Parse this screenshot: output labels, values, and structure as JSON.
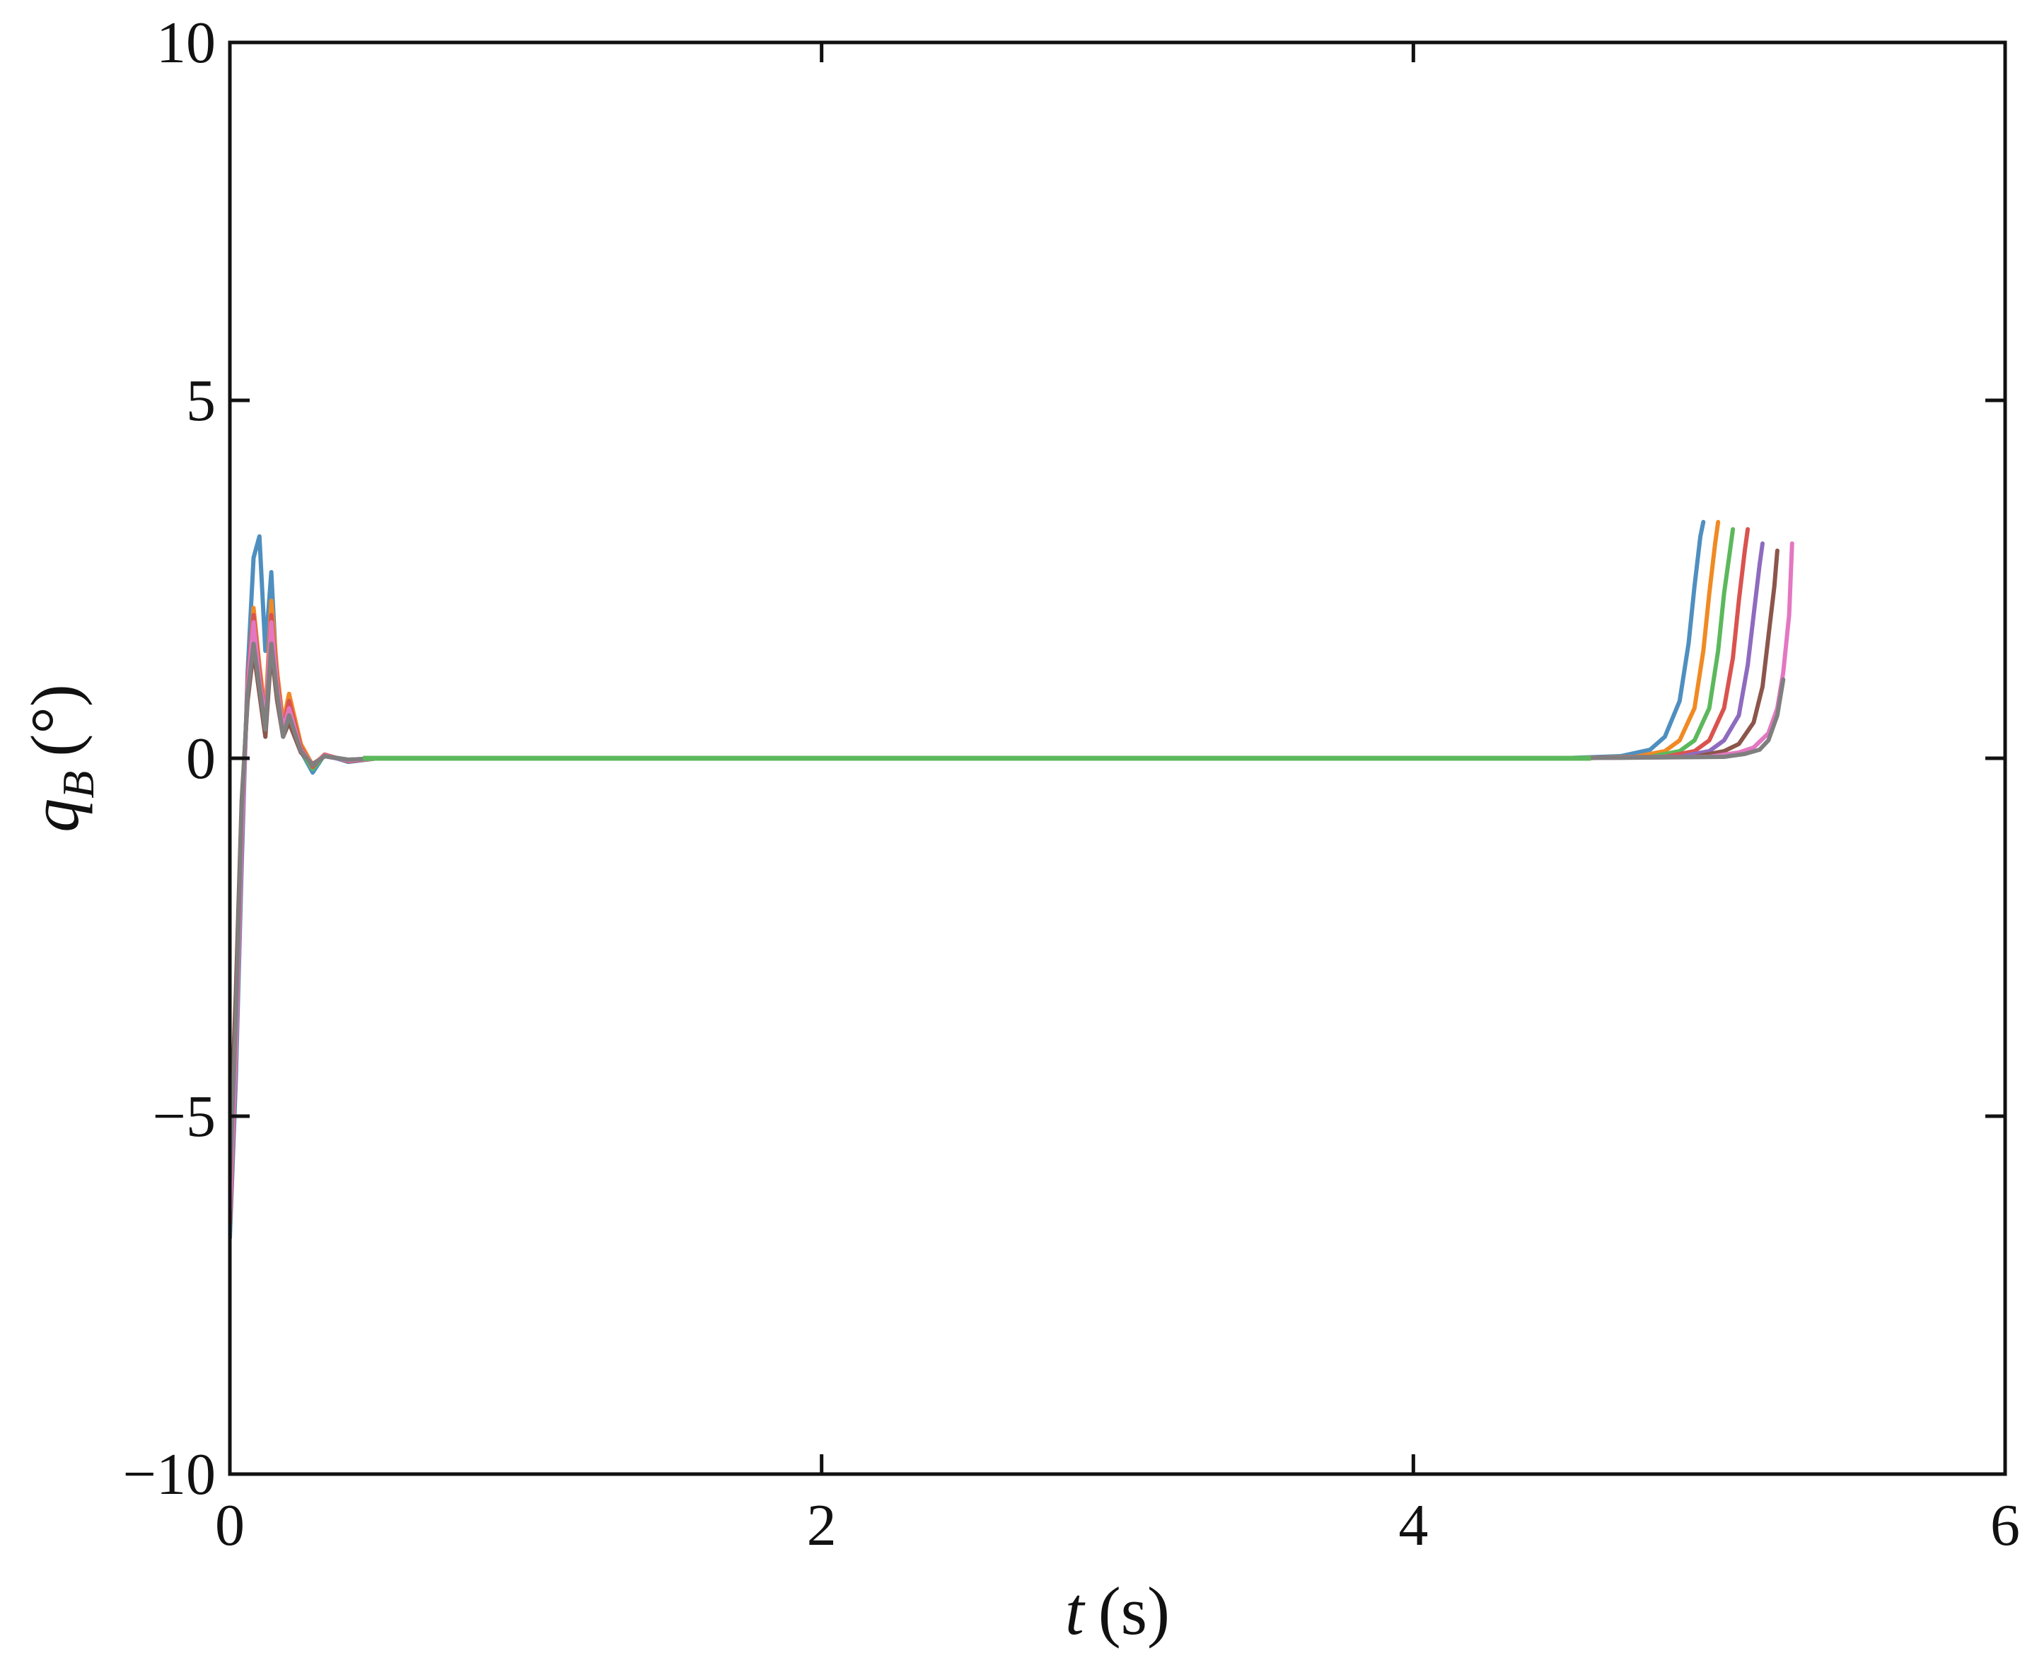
{
  "chart_data": {
    "type": "line",
    "title": "",
    "xlabel_var": "t",
    "xlabel_unit": "(s)",
    "ylabel_var": "q",
    "ylabel_sub": "B",
    "ylabel_unit": "(°)",
    "xlim": [
      0,
      6
    ],
    "ylim": [
      -10,
      10
    ],
    "xticks": [
      0,
      2,
      4,
      6
    ],
    "xtick_labels": [
      "0",
      "2",
      "4",
      "6"
    ],
    "yticks": [
      -10,
      -5,
      0,
      5,
      10
    ],
    "ytick_labels": [
      "−10",
      "−5",
      "0",
      "5",
      "10"
    ],
    "grid": false,
    "legend": "none",
    "series_colors": [
      "#4f8fc0",
      "#f08a24",
      "#5cb85c",
      "#d9534f",
      "#8e6bbf",
      "#8c564b",
      "#e377c2",
      "#7f7f7f",
      "#bcbd22",
      "#17becf",
      "#3a6ea5",
      "#55a868",
      "#333333",
      "#c44e52",
      "#64b5cd"
    ],
    "series": [
      {
        "x": [
          0,
          0.02,
          0.04,
          0.06,
          0.08,
          0.1,
          0.12,
          0.14,
          0.16,
          0.18,
          0.2,
          0.24,
          0.28,
          0.32,
          0.4,
          0.5,
          1,
          2,
          3,
          4,
          4.5,
          4.7,
          4.8,
          4.85,
          4.9,
          4.93,
          4.95,
          4.97,
          4.98
        ],
        "y": [
          -6.7,
          -4.5,
          -1.5,
          1.2,
          2.8,
          3.1,
          1.5,
          2.6,
          1.0,
          0.4,
          0.8,
          0.1,
          -0.2,
          0.05,
          -0.05,
          0,
          0,
          0,
          0,
          0,
          0,
          0.03,
          0.12,
          0.3,
          0.8,
          1.6,
          2.4,
          3.1,
          3.3
        ]
      },
      {
        "x": [
          0,
          0.02,
          0.04,
          0.06,
          0.08,
          0.1,
          0.12,
          0.14,
          0.16,
          0.18,
          0.2,
          0.24,
          0.28,
          0.32,
          0.4,
          0.5,
          1,
          2,
          3,
          4,
          4.5,
          4.75,
          4.85,
          4.9,
          4.95,
          4.98,
          5.0,
          5.02,
          5.03
        ],
        "y": [
          -6.2,
          -4.0,
          -1.0,
          1.0,
          2.1,
          1.3,
          0.6,
          2.2,
          1.2,
          0.5,
          0.9,
          0.2,
          -0.1,
          0.05,
          -0.04,
          0,
          0,
          0,
          0,
          0,
          0,
          0.02,
          0.1,
          0.25,
          0.7,
          1.5,
          2.3,
          3.0,
          3.3
        ]
      },
      {
        "x": [
          0,
          0.02,
          0.04,
          0.06,
          0.08,
          0.1,
          0.12,
          0.14,
          0.16,
          0.18,
          0.2,
          0.24,
          0.28,
          0.32,
          0.4,
          0.5,
          1,
          2,
          3,
          4,
          4.5,
          4.8,
          4.9,
          4.95,
          5.0,
          5.03,
          5.05,
          5.07,
          5.08
        ],
        "y": [
          -5.8,
          -3.6,
          -0.8,
          0.9,
          1.7,
          1.1,
          0.5,
          1.8,
          1.0,
          0.4,
          0.7,
          0.1,
          -0.15,
          0.04,
          -0.03,
          0,
          0,
          0,
          0,
          0,
          0,
          0.02,
          0.1,
          0.25,
          0.7,
          1.5,
          2.3,
          2.9,
          3.2
        ]
      },
      {
        "x": [
          0,
          0.02,
          0.04,
          0.06,
          0.08,
          0.1,
          0.12,
          0.14,
          0.16,
          0.18,
          0.2,
          0.24,
          0.28,
          0.32,
          0.4,
          0.5,
          1,
          2,
          3,
          4,
          4.5,
          4.85,
          4.95,
          5.0,
          5.05,
          5.08,
          5.1,
          5.12,
          5.13
        ],
        "y": [
          -6.5,
          -4.2,
          -1.2,
          1.1,
          2.0,
          1.2,
          0.5,
          2.0,
          1.1,
          0.4,
          0.8,
          0.15,
          -0.12,
          0.05,
          -0.04,
          0,
          0,
          0,
          0,
          0,
          0,
          0.02,
          0.1,
          0.25,
          0.7,
          1.4,
          2.2,
          2.9,
          3.2
        ]
      },
      {
        "x": [
          0,
          0.02,
          0.04,
          0.06,
          0.08,
          0.1,
          0.12,
          0.14,
          0.16,
          0.18,
          0.2,
          0.24,
          0.28,
          0.32,
          0.4,
          0.5,
          1,
          2,
          3,
          4,
          4.5,
          4.9,
          5.0,
          5.05,
          5.1,
          5.13,
          5.15,
          5.17,
          5.18
        ],
        "y": [
          -6.0,
          -3.8,
          -0.9,
          1.0,
          1.8,
          1.0,
          0.4,
          1.7,
          0.9,
          0.35,
          0.6,
          0.1,
          -0.1,
          0.03,
          -0.03,
          0,
          0,
          0,
          0,
          0,
          0,
          0.02,
          0.1,
          0.25,
          0.6,
          1.3,
          2.0,
          2.7,
          3.0
        ]
      },
      {
        "x": [
          0,
          0.02,
          0.04,
          0.06,
          0.08,
          0.1,
          0.12,
          0.14,
          0.16,
          0.18,
          0.2,
          0.24,
          0.28,
          0.32,
          0.4,
          0.5,
          1,
          2,
          3,
          4,
          4.5,
          4.95,
          5.05,
          5.1,
          5.15,
          5.18,
          5.2,
          5.22,
          5.23
        ],
        "y": [
          -5.5,
          -3.3,
          -0.6,
          0.8,
          1.5,
          0.9,
          0.3,
          1.5,
          0.8,
          0.3,
          0.5,
          0.08,
          -0.08,
          0.03,
          -0.02,
          0,
          0,
          0,
          0,
          0,
          0,
          0.02,
          0.1,
          0.2,
          0.5,
          1.0,
          1.7,
          2.4,
          2.9
        ]
      },
      {
        "x": [
          0,
          0.02,
          0.04,
          0.06,
          0.08,
          0.1,
          0.12,
          0.14,
          0.16,
          0.18,
          0.2,
          0.24,
          0.28,
          0.32,
          0.4,
          0.5,
          1,
          2,
          3,
          4,
          4.5,
          5.0,
          5.1,
          5.15,
          5.2,
          5.23,
          5.25,
          5.27,
          5.28
        ],
        "y": [
          -6.3,
          -4.1,
          -1.1,
          1.0,
          1.9,
          1.1,
          0.5,
          1.9,
          1.0,
          0.4,
          0.7,
          0.12,
          -0.1,
          0.04,
          -0.03,
          0,
          0,
          0,
          0,
          0,
          0,
          0.02,
          0.08,
          0.15,
          0.35,
          0.7,
          1.2,
          2.0,
          3.0
        ]
      },
      {
        "x": [
          0,
          0.02,
          0.04,
          0.06,
          0.08,
          0.1,
          0.12,
          0.14,
          0.16,
          0.18,
          0.2,
          0.24,
          0.28,
          0.32,
          0.4,
          0.5,
          1,
          2,
          3,
          4,
          4.5,
          5.05,
          5.12,
          5.17,
          5.2,
          5.23,
          5.25
        ],
        "y": [
          -5.9,
          -3.7,
          -0.7,
          0.9,
          1.6,
          1.0,
          0.4,
          1.6,
          0.9,
          0.3,
          0.6,
          0.1,
          -0.1,
          0.03,
          -0.02,
          0,
          0,
          0,
          0,
          0,
          0,
          0.02,
          0.06,
          0.12,
          0.25,
          0.6,
          1.1
        ]
      }
    ]
  }
}
